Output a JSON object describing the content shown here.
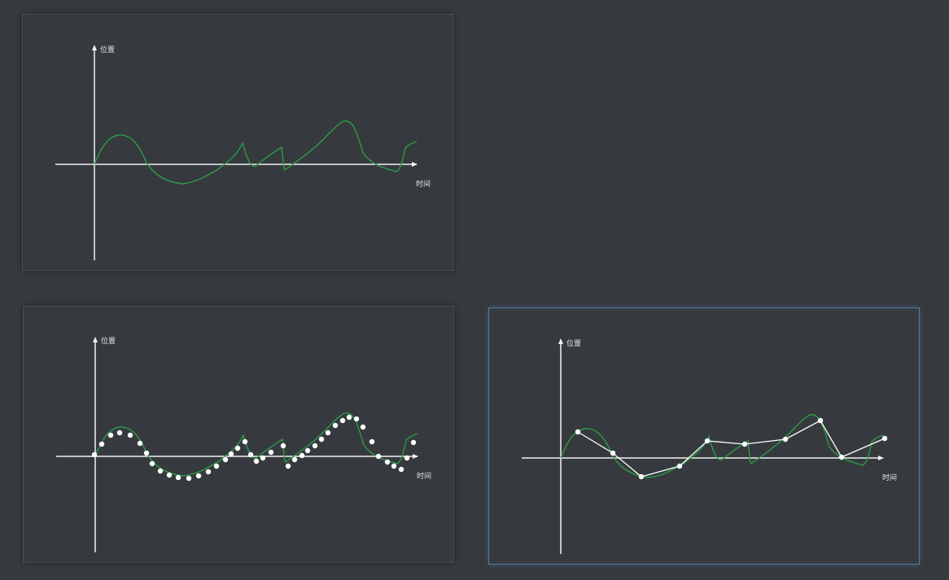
{
  "colors": {
    "background": "#363a3f",
    "axis": "#f2f2f2",
    "signal": "#2d9a48",
    "sample_point": "#ffffff",
    "selected_border": "#5a7a97"
  },
  "panels": [
    {
      "id": "continuous",
      "y_axis_label": "位置",
      "x_axis_label": "时间",
      "show_curve": true,
      "show_samples": false,
      "show_polyline": false,
      "selected": false
    },
    {
      "id": "sampled",
      "y_axis_label": "位置",
      "x_axis_label": "时间",
      "show_curve": true,
      "show_samples": true,
      "show_polyline": false,
      "selected": false
    },
    {
      "id": "reconstructed",
      "y_axis_label": "位置",
      "x_axis_label": "时间",
      "show_curve": true,
      "show_samples": false,
      "show_polyline": true,
      "selected": true
    }
  ]
}
